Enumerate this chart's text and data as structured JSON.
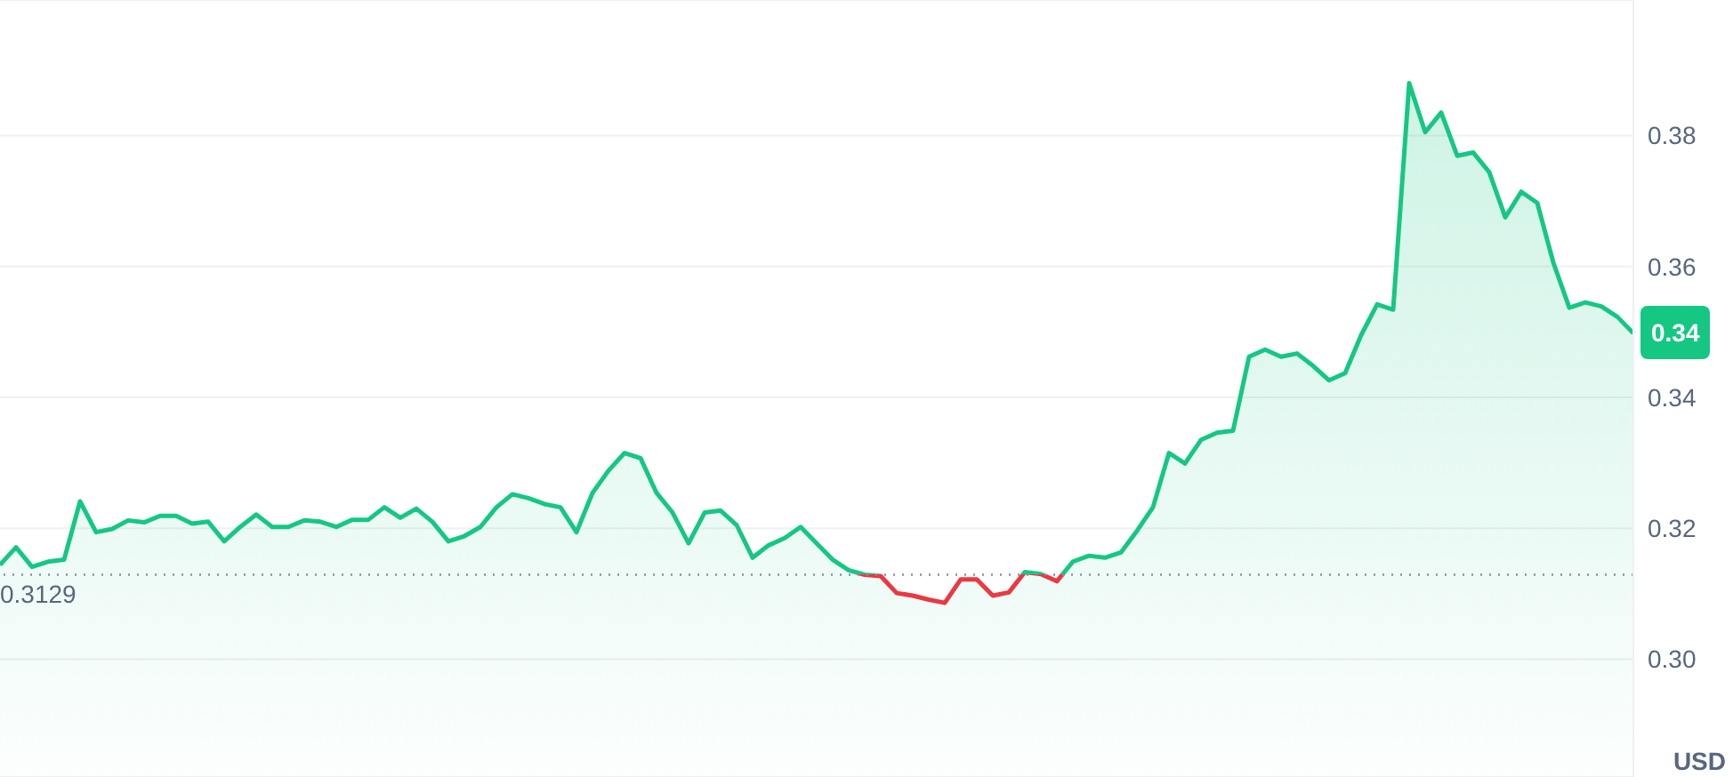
{
  "chart_data": {
    "type": "area",
    "ylabel": "USD",
    "categories": [
      null,
      null,
      null,
      null,
      null,
      null,
      null,
      null,
      null,
      null,
      null,
      null,
      null,
      null,
      null,
      null,
      null,
      null,
      null,
      null,
      null,
      null,
      null,
      null,
      null,
      null,
      null,
      null,
      null,
      null,
      null,
      null,
      null,
      null,
      null,
      null,
      null,
      null,
      null,
      null,
      null,
      null,
      null,
      null,
      null,
      null,
      null,
      null,
      null,
      null,
      null,
      null,
      null,
      null,
      null,
      null,
      null,
      null,
      null,
      null,
      null,
      null,
      null,
      null,
      null,
      null,
      null,
      null,
      null,
      null,
      null,
      null,
      null,
      null,
      null,
      null,
      null,
      null,
      null,
      null,
      null,
      null,
      null,
      null,
      null,
      null,
      null,
      null,
      null,
      null,
      null,
      null,
      null,
      null,
      null,
      null,
      null,
      null,
      null,
      null,
      null,
      null,
      null
    ],
    "series": [
      {
        "color": "#16c784",
        "values": [
          0.3144,
          0.3171,
          0.3141,
          0.3149,
          0.3152,
          0.3241,
          0.3194,
          0.3199,
          0.3212,
          0.3209,
          0.3219,
          0.3219,
          0.3207,
          0.321,
          0.318,
          0.3202,
          0.3221,
          0.3202,
          0.3202,
          0.3212,
          0.321,
          0.3202,
          0.3213,
          0.3213,
          0.3232,
          0.3216,
          0.323,
          0.321,
          0.318,
          0.3188,
          0.3202,
          0.3232,
          0.3252,
          0.3246,
          0.3237,
          0.3232,
          0.3194,
          0.3254,
          0.3288,
          0.3315,
          0.3307,
          0.3254,
          0.3224,
          0.3177,
          0.3224,
          0.3227,
          0.3205,
          0.3155,
          0.3174,
          0.3185,
          0.3202,
          0.3177,
          0.3152,
          0.3136,
          0.3129,
          0.3127,
          0.3101,
          0.3097,
          0.3091,
          0.3086,
          0.3122,
          0.3122,
          0.3097,
          0.3102,
          0.3133,
          0.313,
          0.3119,
          0.3149,
          0.3158,
          0.3155,
          0.3163,
          0.3196,
          0.3232,
          0.3315,
          0.3299,
          0.3335,
          0.3346,
          0.3349,
          0.3462,
          0.3473,
          0.3462,
          0.3467,
          0.3448,
          0.3426,
          0.3437,
          0.3495,
          0.3542,
          0.3534,
          0.388,
          0.3805,
          0.3835,
          0.3769,
          0.3774,
          0.3744,
          0.3675,
          0.3714,
          0.3697,
          0.3606,
          0.3537,
          0.3545,
          0.3539,
          0.3523,
          0.3498
        ]
      }
    ],
    "ylim": [
      0.282,
      0.4007
    ],
    "yticks": [
      {
        "value": 0.3,
        "label": "0.30"
      },
      {
        "value": 0.32,
        "label": "0.32"
      },
      {
        "value": 0.34,
        "label": "0.34"
      },
      {
        "value": 0.36,
        "label": "0.36"
      },
      {
        "value": 0.38,
        "label": "0.38"
      }
    ],
    "ref_lines": [
      {
        "axis": "y",
        "value": 0.3129,
        "label": "0.3129",
        "color": "#8a8f99",
        "line_style": "dotted"
      }
    ],
    "annotations": [
      "0.34"
    ],
    "grid": "y",
    "legend": false
  }
}
